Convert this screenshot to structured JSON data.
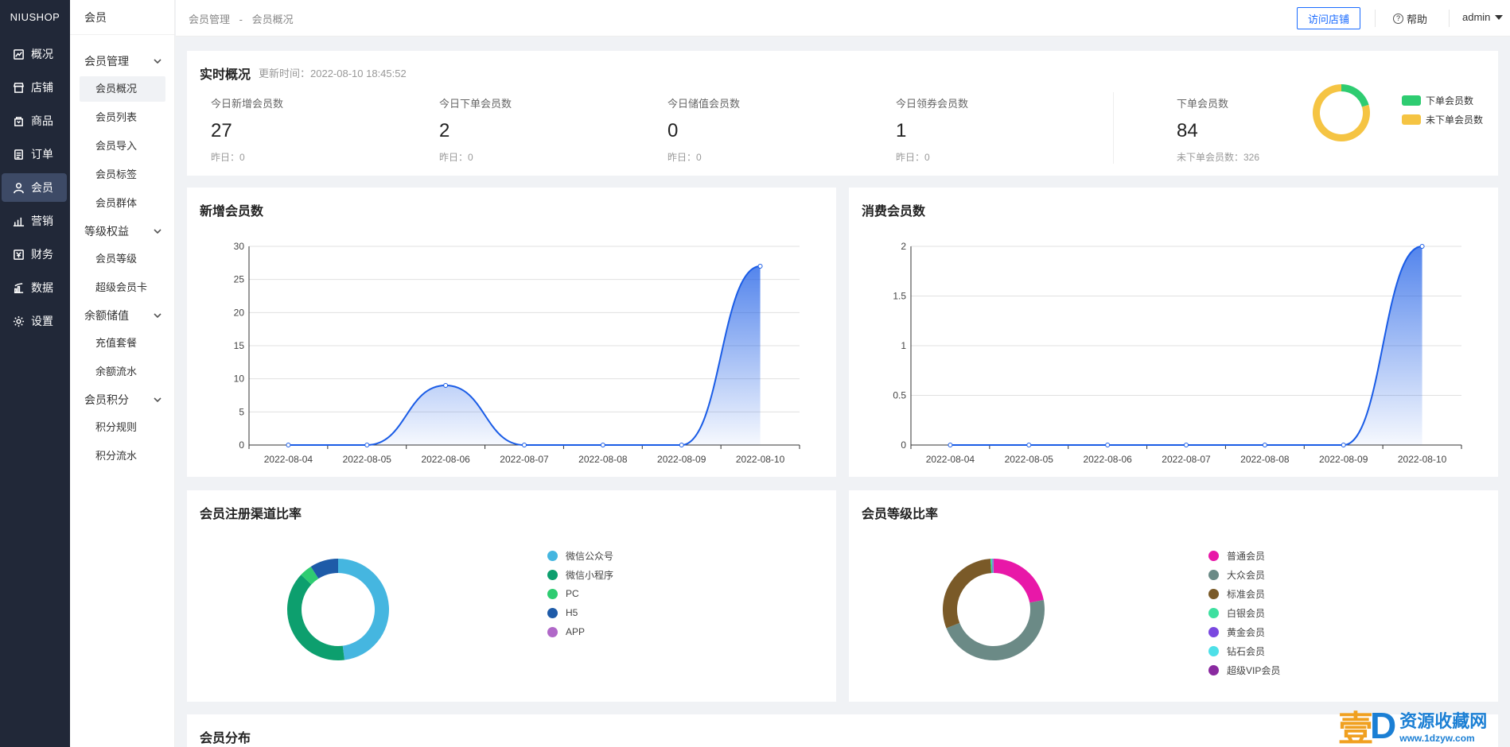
{
  "brand": "NIUSHOP",
  "rail": [
    {
      "label": "概况",
      "icon": "chart-icon"
    },
    {
      "label": "店铺",
      "icon": "store-icon"
    },
    {
      "label": "商品",
      "icon": "goods-icon"
    },
    {
      "label": "订单",
      "icon": "order-icon"
    },
    {
      "label": "会员",
      "icon": "user-icon"
    },
    {
      "label": "营销",
      "icon": "bar-icon"
    },
    {
      "label": "财务",
      "icon": "finance-icon"
    },
    {
      "label": "数据",
      "icon": "data-icon"
    },
    {
      "label": "设置",
      "icon": "gear-icon"
    }
  ],
  "sidebar": {
    "title": "会员",
    "groups": [
      {
        "label": "会员管理",
        "items": [
          "会员概况",
          "会员列表",
          "会员导入",
          "会员标签",
          "会员群体"
        ]
      },
      {
        "label": "等级权益",
        "items": [
          "会员等级",
          "超级会员卡"
        ]
      },
      {
        "label": "余额储值",
        "items": [
          "充值套餐",
          "余额流水"
        ]
      },
      {
        "label": "会员积分",
        "items": [
          "积分规则",
          "积分流水"
        ]
      }
    ]
  },
  "topbar": {
    "breadcrumb": [
      "会员管理",
      "-",
      "会员概况"
    ],
    "visit_store": "访问店铺",
    "help": "帮助",
    "user": "admin"
  },
  "realtime": {
    "title": "实时概况",
    "update_time": "更新时间：2022-08-10 18:45:52",
    "stats": [
      {
        "label": "今日新增会员数",
        "value": "27",
        "yesterday": "昨日：0"
      },
      {
        "label": "今日下单会员数",
        "value": "2",
        "yesterday": "昨日：0"
      },
      {
        "label": "今日储值会员数",
        "value": "0",
        "yesterday": "昨日：0"
      },
      {
        "label": "今日领券会员数",
        "value": "1",
        "yesterday": "昨日：0"
      }
    ],
    "order_members": {
      "label": "下单会员数",
      "value": "84",
      "sub": "未下单会员数：326"
    },
    "donut_legend": [
      {
        "label": "下单会员数",
        "color": "#2ecc71"
      },
      {
        "label": "未下单会员数",
        "color": "#f5c443"
      }
    ]
  },
  "cards": {
    "new_members": "新增会员数",
    "consume_members": "消费会员数",
    "channel_ratio": "会员注册渠道比率",
    "level_ratio": "会员等级比率",
    "distribution": "会员分布"
  },
  "chart_data": [
    {
      "type": "pie",
      "categories": [
        "下单会员数",
        "未下单会员数"
      ],
      "values": [
        84,
        326
      ],
      "colors": [
        "#2ecc71",
        "#f5c443"
      ]
    },
    {
      "type": "area",
      "title": "新增会员数",
      "categories": [
        "2022-08-04",
        "2022-08-05",
        "2022-08-06",
        "2022-08-07",
        "2022-08-08",
        "2022-08-09",
        "2022-08-10"
      ],
      "values": [
        0,
        0,
        9,
        0,
        0,
        0,
        27
      ],
      "ylim": [
        0,
        30
      ],
      "yticks": [
        "0",
        "5",
        "10",
        "15",
        "20",
        "25",
        "30"
      ],
      "color": "#1a5ce6",
      "grid": true
    },
    {
      "type": "area",
      "title": "消费会员数",
      "categories": [
        "2022-08-04",
        "2022-08-05",
        "2022-08-06",
        "2022-08-07",
        "2022-08-08",
        "2022-08-09",
        "2022-08-10"
      ],
      "values": [
        0,
        0,
        0,
        0,
        0,
        0,
        2
      ],
      "ylim": [
        0,
        2
      ],
      "yticks": [
        "0",
        "0.5",
        "1",
        "1.5",
        "2"
      ],
      "color": "#1a5ce6",
      "grid": true
    },
    {
      "type": "pie",
      "title": "会员注册渠道比率",
      "categories": [
        "微信公众号",
        "微信小程序",
        "PC",
        "H5",
        "APP"
      ],
      "values": [
        48,
        39,
        4,
        9,
        0
      ],
      "colors": [
        "#45b6e0",
        "#0d9f6e",
        "#2ecc71",
        "#1e5ba8",
        "#b068c8"
      ]
    },
    {
      "type": "pie",
      "title": "会员等级比率",
      "categories": [
        "普通会员",
        "大众会员",
        "标准会员",
        "白银会员",
        "黄金会员",
        "钻石会员",
        "超级VIP会员"
      ],
      "values": [
        22,
        47,
        30,
        0.5,
        0.2,
        0.2,
        0.1
      ],
      "colors": [
        "#e818a8",
        "#6b8a86",
        "#7a5a28",
        "#3ee0a0",
        "#7a48e0",
        "#4ee0e8",
        "#8a2aa0"
      ]
    }
  ],
  "watermark": {
    "big": "壹",
    "d": "D",
    "cn": "资源收藏网",
    "url": "www.1dzyw.com"
  }
}
